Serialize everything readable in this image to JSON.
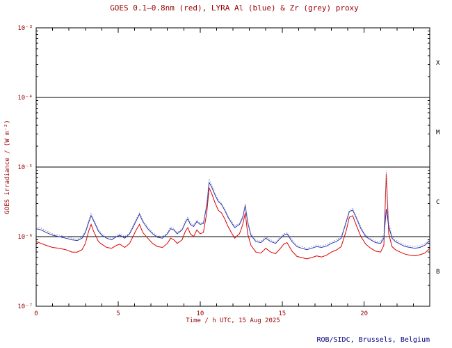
{
  "chart_data": {
    "type": "line",
    "title": "GOES 0.1—0.8nm (red), LYRA Al (blue) & Zr (grey) proxy",
    "xlabel": "Time / h UTC, 15 Aug 2025",
    "ylabel": "GOES irradiance / (W m⁻²)",
    "credit": "ROB/SIDC, Brussels, Belgium",
    "x_range": [
      0,
      24
    ],
    "y_range": [
      1e-07,
      0.001
    ],
    "y_scale": "log",
    "grid": "off",
    "legend_position": "none (series colors named in title)",
    "x_ticks_major": [
      0,
      5,
      10,
      15,
      20
    ],
    "x_tick_minor_step": 1,
    "y_ticks": [
      {
        "label": "10⁻³",
        "value": 0.001
      },
      {
        "label": "10⁻⁴",
        "value": 0.0001
      },
      {
        "label": "10⁻⁵",
        "value": 1e-05
      },
      {
        "label": "10⁻⁶",
        "value": 1e-06
      },
      {
        "label": "10⁻⁷",
        "value": 1e-07
      }
    ],
    "boundary_levels": [
      0.0001,
      1e-05,
      1e-06
    ],
    "class_bands": [
      {
        "label": "X",
        "level": 0.000316
      },
      {
        "label": "M",
        "level": 3.16e-05
      },
      {
        "label": "C",
        "level": 3.16e-06
      },
      {
        "label": "B",
        "level": 3.16e-07
      }
    ],
    "colors": {
      "axis_text": "#990000",
      "credit_text": "#000080",
      "frame": "#000000",
      "goes_red": "#dd0000",
      "lyra_al_blue": "#2233bb",
      "zr_grey": "#999999"
    },
    "x": [
      0,
      0.3,
      0.6,
      1,
      1.4,
      1.8,
      2.2,
      2.5,
      2.8,
      3,
      3.2,
      3.35,
      3.5,
      3.8,
      4,
      4.3,
      4.6,
      4.9,
      5.1,
      5.4,
      5.7,
      5.9,
      6.1,
      6.3,
      6.5,
      6.8,
      7.1,
      7.4,
      7.7,
      8,
      8.2,
      8.4,
      8.6,
      8.9,
      9.1,
      9.25,
      9.4,
      9.6,
      9.8,
      10,
      10.2,
      10.4,
      10.55,
      10.7,
      10.9,
      11.1,
      11.3,
      11.5,
      11.7,
      11.9,
      12.1,
      12.4,
      12.6,
      12.75,
      12.9,
      13.1,
      13.4,
      13.7,
      14,
      14.3,
      14.6,
      14.9,
      15.1,
      15.3,
      15.6,
      15.9,
      16.2,
      16.5,
      16.8,
      17.1,
      17.4,
      17.7,
      18,
      18.3,
      18.6,
      18.9,
      19.1,
      19.3,
      19.5,
      19.8,
      20.1,
      20.4,
      20.7,
      21,
      21.2,
      21.35,
      21.5,
      21.7,
      21.9,
      22.2,
      22.5,
      22.8,
      23.1,
      23.4,
      23.7,
      24
    ],
    "series": [
      {
        "name": "GOES 0.1-0.8nm",
        "color": "#dd0000",
        "style": "solid",
        "values": [
          8.5e-07,
          8e-07,
          7.5e-07,
          7e-07,
          6.8e-07,
          6.5e-07,
          6e-07,
          6e-07,
          6.5e-07,
          8e-07,
          1.2e-06,
          1.5e-06,
          1.2e-06,
          8.5e-07,
          7.8e-07,
          7e-07,
          6.8e-07,
          7.5e-07,
          7.8e-07,
          7e-07,
          8e-07,
          1e-06,
          1.25e-06,
          1.5e-06,
          1.15e-06,
          9.5e-07,
          8e-07,
          7.2e-07,
          7e-07,
          8e-07,
          9.5e-07,
          9e-07,
          8e-07,
          9e-07,
          1.2e-06,
          1.35e-06,
          1.1e-06,
          1e-06,
          1.25e-06,
          1.1e-06,
          1.15e-06,
          2.2e-06,
          5e-06,
          4.2e-06,
          3.1e-06,
          2.4e-06,
          2.2e-06,
          1.8e-06,
          1.4e-06,
          1.15e-06,
          9.5e-07,
          1.1e-06,
          1.5e-06,
          2.2e-06,
          1.1e-06,
          7.5e-07,
          6e-07,
          5.8e-07,
          6.8e-07,
          6e-07,
          5.7e-07,
          6.8e-07,
          7.8e-07,
          8.2e-07,
          6.2e-07,
          5.2e-07,
          5e-07,
          4.8e-07,
          5e-07,
          5.3e-07,
          5.1e-07,
          5.4e-07,
          6e-07,
          6.4e-07,
          7.2e-07,
          1.2e-06,
          1.9e-06,
          2e-06,
          1.5e-06,
          1e-06,
          7.8e-07,
          6.8e-07,
          6.2e-07,
          6e-07,
          7.5e-07,
          8e-06,
          1.1e-06,
          7.2e-07,
          6.5e-07,
          6e-07,
          5.6e-07,
          5.4e-07,
          5.3e-07,
          5.5e-07,
          5.8e-07,
          6.8e-07
        ]
      },
      {
        "name": "LYRA Al",
        "color": "#2233bb",
        "style": "solid",
        "values": [
          1.3e-06,
          1.25e-06,
          1.15e-06,
          1.05e-06,
          1e-06,
          9.5e-07,
          9e-07,
          8.8e-07,
          9.5e-07,
          1.15e-06,
          1.6e-06,
          2e-06,
          1.7e-06,
          1.2e-06,
          1.05e-06,
          9.5e-07,
          9e-07,
          1e-06,
          1.05e-06,
          9.5e-07,
          1.1e-06,
          1.35e-06,
          1.7e-06,
          2.1e-06,
          1.65e-06,
          1.3e-06,
          1.1e-06,
          9.8e-07,
          9.5e-07,
          1.1e-06,
          1.3e-06,
          1.25e-06,
          1.1e-06,
          1.25e-06,
          1.6e-06,
          1.8e-06,
          1.5e-06,
          1.4e-06,
          1.65e-06,
          1.5e-06,
          1.55e-06,
          2.8e-06,
          6e-06,
          5.2e-06,
          4e-06,
          3.2e-06,
          2.9e-06,
          2.4e-06,
          1.9e-06,
          1.6e-06,
          1.35e-06,
          1.5e-06,
          1.9e-06,
          2.8e-06,
          1.6e-06,
          1.05e-06,
          8.5e-07,
          8.2e-07,
          9.5e-07,
          8.5e-07,
          8e-07,
          9.5e-07,
          1.05e-06,
          1.1e-06,
          8.5e-07,
          7.2e-07,
          6.8e-07,
          6.5e-07,
          6.8e-07,
          7.2e-07,
          7e-07,
          7.3e-07,
          8e-07,
          8.5e-07,
          9.5e-07,
          1.6e-06,
          2.3e-06,
          2.4e-06,
          1.9e-06,
          1.3e-06,
          1e-06,
          9e-07,
          8.2e-07,
          8e-07,
          9.5e-07,
          2.5e-06,
          1.4e-06,
          9.5e-07,
          8.5e-07,
          7.8e-07,
          7.2e-07,
          7e-07,
          6.8e-07,
          7e-07,
          7.5e-07,
          8.8e-07
        ]
      },
      {
        "name": "Zr",
        "color": "#999999",
        "style": "dotted",
        "values": [
          1.38e-06,
          1.32e-06,
          1.22e-06,
          1.1e-06,
          1.05e-06,
          1e-06,
          9.5e-07,
          9.2e-07,
          1e-06,
          1.2e-06,
          1.7e-06,
          2.2e-06,
          1.8e-06,
          1.28e-06,
          1.1e-06,
          1e-06,
          9.5e-07,
          1.05e-06,
          1.1e-06,
          1e-06,
          1.15e-06,
          1.42e-06,
          1.8e-06,
          2.2e-06,
          1.75e-06,
          1.38e-06,
          1.15e-06,
          1.03e-06,
          1e-06,
          1.15e-06,
          1.38e-06,
          1.3e-06,
          1.15e-06,
          1.3e-06,
          1.7e-06,
          1.9e-06,
          1.58e-06,
          1.48e-06,
          1.72e-06,
          1.58e-06,
          1.62e-06,
          3e-06,
          6.8e-06,
          5.6e-06,
          4.2e-06,
          3.4e-06,
          3e-06,
          2.5e-06,
          2e-06,
          1.7e-06,
          1.42e-06,
          1.58e-06,
          2e-06,
          3e-06,
          1.7e-06,
          1.1e-06,
          9e-07,
          8.6e-07,
          1e-06,
          9e-07,
          8.4e-07,
          1e-06,
          1.1e-06,
          1.15e-06,
          9e-07,
          7.6e-07,
          7.2e-07,
          6.8e-07,
          7.2e-07,
          7.6e-07,
          7.4e-07,
          7.7e-07,
          8.4e-07,
          9e-07,
          1e-06,
          1.7e-06,
          2.4e-06,
          2.55e-06,
          2e-06,
          1.38e-06,
          1.05e-06,
          9.5e-07,
          8.6e-07,
          8.4e-07,
          1.1e-06,
          9e-06,
          1.6e-06,
          1e-06,
          9e-07,
          8.2e-07,
          7.6e-07,
          7.4e-07,
          7.2e-07,
          7.4e-07,
          7.9e-07,
          9.2e-07
        ]
      }
    ]
  }
}
